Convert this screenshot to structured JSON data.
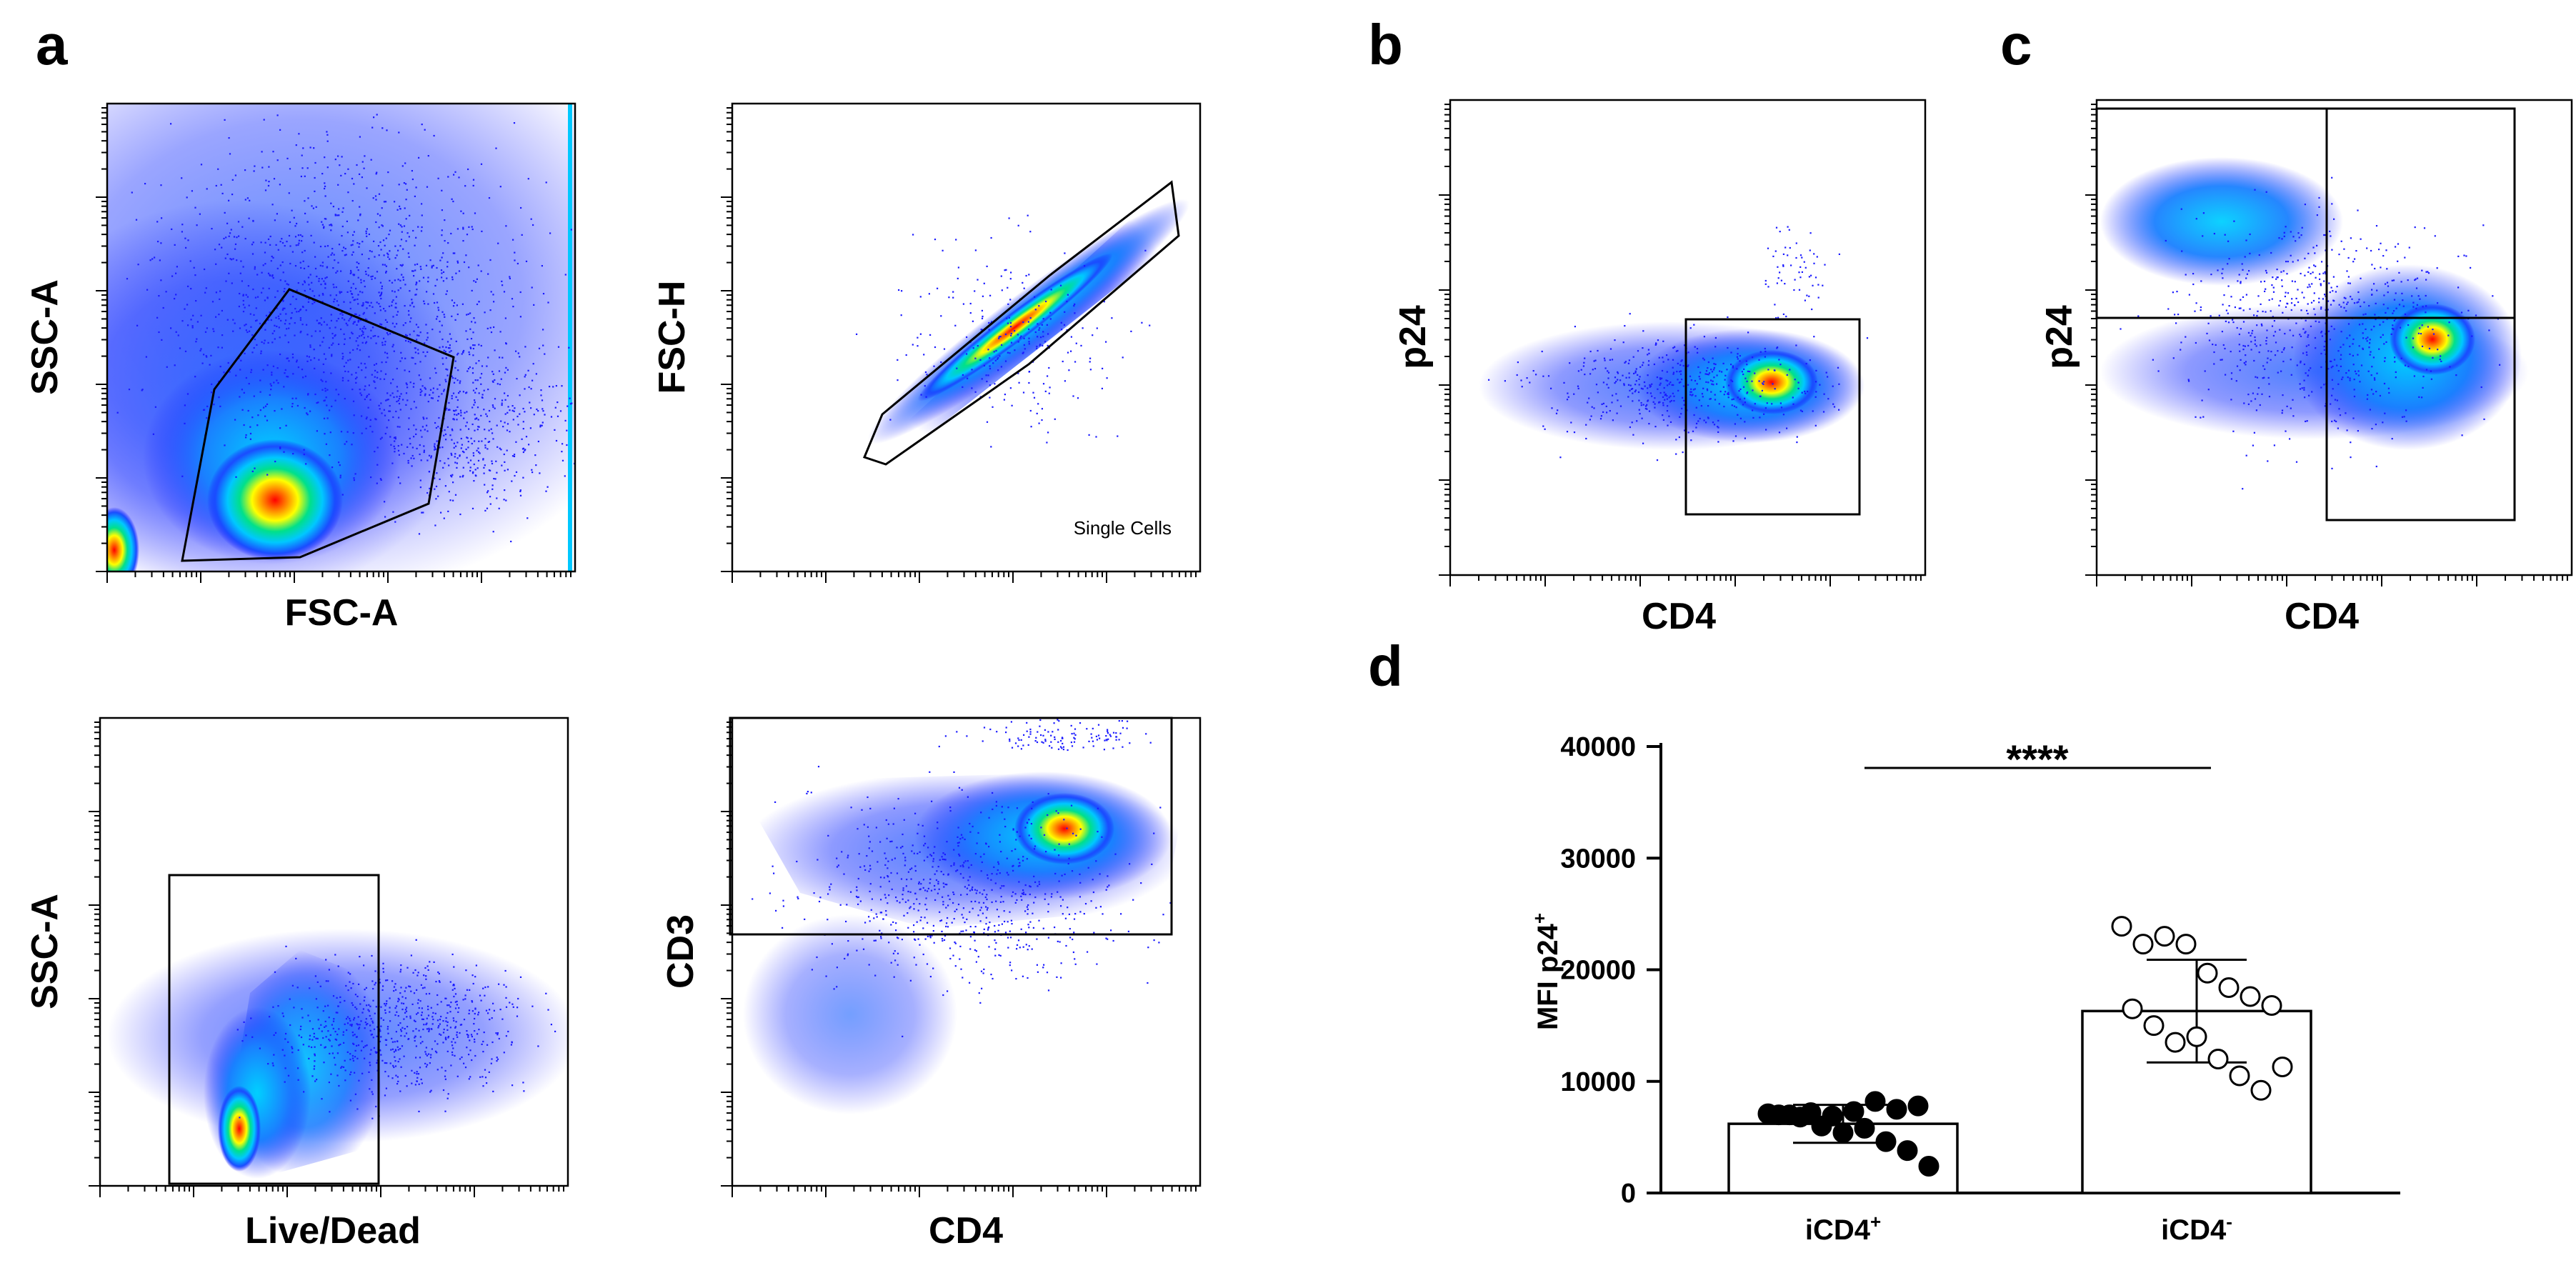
{
  "figure": {
    "panel_labels": [
      "a",
      "b",
      "c",
      "d"
    ],
    "flow_plots": [
      {
        "id": "a1",
        "xlabel": "FSC-A",
        "ylabel": "SSC-A",
        "annotation": ""
      },
      {
        "id": "a2",
        "xlabel": "",
        "ylabel": "FSC-H",
        "annotation": "Single Cells"
      },
      {
        "id": "a3",
        "xlabel": "Live/Dead",
        "ylabel": "SSC-A",
        "annotation": ""
      },
      {
        "id": "a4",
        "xlabel": "CD4",
        "ylabel": "CD3",
        "annotation": ""
      },
      {
        "id": "b",
        "xlabel": "CD4",
        "ylabel": "p24",
        "annotation": ""
      },
      {
        "id": "c",
        "xlabel": "CD4",
        "ylabel": "p24",
        "annotation": ""
      }
    ]
  },
  "colors": {
    "density_low": "#1a1aff",
    "density_mid": "#00e0ff",
    "density_high1": "#ffff00",
    "density_high2": "#ff0000",
    "gate": "#000000"
  },
  "chart_data": {
    "type": "bar",
    "categories": [
      "iCD4",
      "iCD4"
    ],
    "category_superscripts": [
      "+",
      "-"
    ],
    "ylabel": "MFI p24",
    "ylabel_superscript": "+",
    "ylim": [
      0,
      40000
    ],
    "yticks": [
      "0",
      "10000",
      "20000",
      "30000",
      "40000"
    ],
    "significance": "****",
    "series": [
      {
        "name": "iCD4+",
        "mean": 6200,
        "sd_low": 4500,
        "sd_high": 7900,
        "marker": "filled",
        "points": [
          7100,
          7000,
          7200,
          6900,
          7300,
          8200,
          7500,
          7800,
          7000,
          6800,
          6000,
          5400,
          5800,
          4600,
          3800,
          2400
        ]
      },
      {
        "name": "iCD4-",
        "mean": 16300,
        "sd_low": 11700,
        "sd_high": 20900,
        "marker": "open",
        "points": [
          23900,
          22300,
          23000,
          22300,
          19700,
          18400,
          17600,
          16800,
          16500,
          15000,
          13500,
          14000,
          12000,
          10500,
          9200,
          11300
        ]
      }
    ]
  }
}
